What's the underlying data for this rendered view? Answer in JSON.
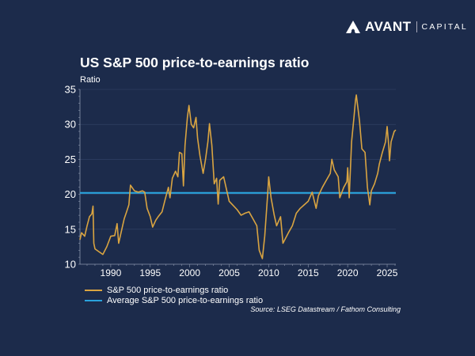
{
  "brand": {
    "name": "AVANT",
    "suffix": "CAPITAL"
  },
  "chart_data": {
    "type": "line",
    "title": "US S&P 500 price-to-earnings ratio",
    "ylabel": "Ratio",
    "xlabel": "",
    "xlim": [
      1986.1,
      2026.1
    ],
    "ylim": [
      10,
      35
    ],
    "yticks": [
      10,
      15,
      20,
      25,
      30,
      35
    ],
    "xticks": [
      1990,
      1995,
      2000,
      2005,
      2010,
      2015,
      2020,
      2025
    ],
    "grid": true,
    "legend_placement": "bottom-left",
    "colors": {
      "pe": "#d9a441",
      "average": "#2aa3dc",
      "background": "#1c2b4b"
    },
    "series": [
      {
        "name": "S&P 500 price-to-earnings ratio",
        "points": [
          [
            1986.1,
            13.5
          ],
          [
            1986.3,
            14.5
          ],
          [
            1986.7,
            14.0
          ],
          [
            1987.0,
            15.5
          ],
          [
            1987.3,
            16.8
          ],
          [
            1987.6,
            17.2
          ],
          [
            1987.75,
            18.3
          ],
          [
            1987.85,
            13.0
          ],
          [
            1988.0,
            12.2
          ],
          [
            1988.5,
            11.8
          ],
          [
            1989.0,
            11.4
          ],
          [
            1989.5,
            12.5
          ],
          [
            1990.0,
            14.0
          ],
          [
            1990.5,
            14.1
          ],
          [
            1990.8,
            15.8
          ],
          [
            1991.0,
            13.0
          ],
          [
            1991.3,
            14.5
          ],
          [
            1991.7,
            16.5
          ],
          [
            1992.0,
            17.5
          ],
          [
            1992.3,
            18.5
          ],
          [
            1992.5,
            21.3
          ],
          [
            1993.0,
            20.5
          ],
          [
            1993.5,
            20.3
          ],
          [
            1994.0,
            20.5
          ],
          [
            1994.3,
            20.3
          ],
          [
            1994.6,
            18.0
          ],
          [
            1995.0,
            16.8
          ],
          [
            1995.3,
            15.3
          ],
          [
            1995.7,
            16.3
          ],
          [
            1996.0,
            16.8
          ],
          [
            1996.5,
            17.5
          ],
          [
            1996.9,
            19.3
          ],
          [
            1997.3,
            21.0
          ],
          [
            1997.5,
            19.5
          ],
          [
            1997.8,
            22.3
          ],
          [
            1998.2,
            23.3
          ],
          [
            1998.5,
            22.5
          ],
          [
            1998.7,
            26.0
          ],
          [
            1999.0,
            25.8
          ],
          [
            1999.2,
            21.2
          ],
          [
            1999.4,
            27.0
          ],
          [
            1999.7,
            31.0
          ],
          [
            1999.9,
            32.7
          ],
          [
            2000.2,
            30.0
          ],
          [
            2000.5,
            29.5
          ],
          [
            2000.8,
            31.0
          ],
          [
            2001.0,
            28.0
          ],
          [
            2001.3,
            25.5
          ],
          [
            2001.7,
            23.0
          ],
          [
            2002.0,
            25.0
          ],
          [
            2002.3,
            27.5
          ],
          [
            2002.5,
            30.1
          ],
          [
            2002.8,
            27.0
          ],
          [
            2003.1,
            21.5
          ],
          [
            2003.4,
            22.3
          ],
          [
            2003.6,
            18.6
          ],
          [
            2003.8,
            22.0
          ],
          [
            2004.3,
            22.5
          ],
          [
            2004.6,
            21.0
          ],
          [
            2005.0,
            19.0
          ],
          [
            2005.5,
            18.4
          ],
          [
            2006.0,
            17.8
          ],
          [
            2006.5,
            17.0
          ],
          [
            2007.0,
            17.3
          ],
          [
            2007.5,
            17.5
          ],
          [
            2008.0,
            16.5
          ],
          [
            2008.5,
            15.5
          ],
          [
            2008.8,
            12.0
          ],
          [
            2009.2,
            10.8
          ],
          [
            2009.5,
            14.0
          ],
          [
            2009.9,
            20.5
          ],
          [
            2010.0,
            22.5
          ],
          [
            2010.3,
            19.5
          ],
          [
            2010.7,
            17.0
          ],
          [
            2011.0,
            15.5
          ],
          [
            2011.5,
            16.8
          ],
          [
            2011.8,
            13.0
          ],
          [
            2012.5,
            14.5
          ],
          [
            2013.0,
            15.5
          ],
          [
            2013.5,
            17.3
          ],
          [
            2014.0,
            18.0
          ],
          [
            2014.5,
            18.5
          ],
          [
            2015.0,
            19.0
          ],
          [
            2015.5,
            20.3
          ],
          [
            2016.0,
            18.0
          ],
          [
            2016.3,
            19.8
          ],
          [
            2016.8,
            21.0
          ],
          [
            2017.3,
            22.0
          ],
          [
            2017.8,
            23.0
          ],
          [
            2018.0,
            25.0
          ],
          [
            2018.3,
            23.5
          ],
          [
            2018.8,
            22.5
          ],
          [
            2019.0,
            19.5
          ],
          [
            2019.5,
            21.0
          ],
          [
            2019.9,
            21.8
          ],
          [
            2020.0,
            23.8
          ],
          [
            2020.2,
            19.5
          ],
          [
            2020.5,
            27.5
          ],
          [
            2020.8,
            31.0
          ],
          [
            2021.0,
            33.5
          ],
          [
            2021.1,
            34.2
          ],
          [
            2021.5,
            30.5
          ],
          [
            2021.8,
            26.5
          ],
          [
            2022.2,
            26.0
          ],
          [
            2022.5,
            21.0
          ],
          [
            2022.8,
            18.5
          ],
          [
            2023.0,
            20.5
          ],
          [
            2023.4,
            21.5
          ],
          [
            2023.8,
            23.0
          ],
          [
            2024.0,
            24.3
          ],
          [
            2024.4,
            26.0
          ],
          [
            2024.8,
            27.5
          ],
          [
            2025.0,
            29.7
          ],
          [
            2025.2,
            27.0
          ],
          [
            2025.3,
            24.8
          ],
          [
            2025.5,
            27.5
          ],
          [
            2025.9,
            29.0
          ],
          [
            2026.1,
            29.2
          ]
        ]
      },
      {
        "name": "Average S&P 500 price-to-earnings ratio",
        "value": 20.2
      }
    ],
    "source": "Source: LSEG Datastream / Fathom Consulting"
  }
}
